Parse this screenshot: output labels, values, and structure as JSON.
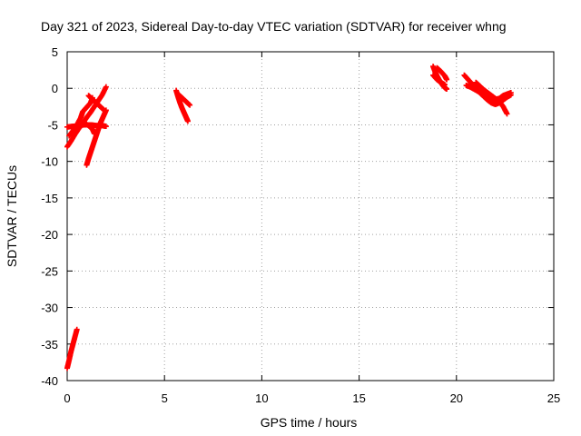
{
  "chart_data": {
    "type": "scatter",
    "title": "Day 321 of 2023, Sidereal Day-to-day VTEC variation (SDTVAR) for receiver whng",
    "xlabel": "GPS time / hours",
    "ylabel": "SDTVAR / TECUs",
    "xlim": [
      0,
      25
    ],
    "ylim": [
      -40,
      5
    ],
    "xticks": [
      0,
      5,
      10,
      15,
      20,
      25
    ],
    "yticks": [
      5,
      0,
      -5,
      -10,
      -15,
      -20,
      -25,
      -30,
      -35,
      -40
    ],
    "grid": true,
    "marker": "plus",
    "color": "#ff0000",
    "series": [
      {
        "segments": [
          [
            [
              0.0,
              -38.3
            ],
            [
              0.1,
              -37.2
            ],
            [
              0.2,
              -36.0
            ],
            [
              0.3,
              -35.0
            ],
            [
              0.4,
              -34.0
            ],
            [
              0.5,
              -33.0
            ]
          ],
          [
            [
              0.0,
              -8.0
            ],
            [
              0.2,
              -7.2
            ],
            [
              0.4,
              -6.3
            ],
            [
              0.6,
              -5.5
            ],
            [
              0.8,
              -4.8
            ],
            [
              1.0,
              -4.0
            ],
            [
              1.2,
              -3.3
            ],
            [
              1.4,
              -2.5
            ],
            [
              1.6,
              -1.7
            ],
            [
              1.8,
              -0.9
            ],
            [
              2.0,
              0.2
            ]
          ],
          [
            [
              0.1,
              -6.5
            ],
            [
              0.3,
              -5.8
            ],
            [
              0.5,
              -5.0
            ],
            [
              0.7,
              -4.0
            ],
            [
              0.8,
              -3.2
            ],
            [
              1.0,
              -2.6
            ],
            [
              1.2,
              -2.0
            ],
            [
              1.3,
              -1.3
            ]
          ],
          [
            [
              0.0,
              -5.3
            ],
            [
              0.3,
              -5.2
            ],
            [
              0.6,
              -5.1
            ],
            [
              0.9,
              -5.0
            ],
            [
              1.2,
              -5.0
            ],
            [
              1.5,
              -5.1
            ],
            [
              1.8,
              -5.1
            ],
            [
              2.0,
              -5.2
            ]
          ],
          [
            [
              0.9,
              -4.8
            ],
            [
              1.1,
              -5.1
            ],
            [
              1.3,
              -5.6
            ],
            [
              1.4,
              -6.2
            ]
          ],
          [
            [
              1.0,
              -10.5
            ],
            [
              1.1,
              -9.6
            ],
            [
              1.2,
              -8.8
            ],
            [
              1.3,
              -8.0
            ],
            [
              1.4,
              -7.2
            ],
            [
              1.5,
              -6.4
            ],
            [
              1.6,
              -5.6
            ],
            [
              1.7,
              -4.8
            ],
            [
              1.8,
              -4.2
            ],
            [
              1.9,
              -3.6
            ],
            [
              2.0,
              -3.0
            ]
          ],
          [
            [
              1.1,
              -1.0
            ],
            [
              1.3,
              -1.5
            ],
            [
              1.5,
              -2.0
            ],
            [
              1.7,
              -2.5
            ],
            [
              1.9,
              -3.0
            ]
          ],
          [
            [
              5.6,
              -0.3
            ],
            [
              5.7,
              -1.2
            ],
            [
              5.8,
              -2.0
            ],
            [
              5.9,
              -2.7
            ],
            [
              6.0,
              -3.3
            ],
            [
              6.1,
              -3.9
            ],
            [
              6.2,
              -4.5
            ]
          ],
          [
            [
              5.7,
              -0.8
            ],
            [
              5.9,
              -1.3
            ],
            [
              6.1,
              -1.8
            ],
            [
              6.3,
              -2.3
            ]
          ],
          [
            [
              18.8,
              3.0
            ],
            [
              18.9,
              2.3
            ],
            [
              19.0,
              1.7
            ],
            [
              19.1,
              1.2
            ],
            [
              19.2,
              0.8
            ],
            [
              19.3,
              0.4
            ],
            [
              19.4,
              0.1
            ],
            [
              19.5,
              -0.1
            ]
          ],
          [
            [
              19.0,
              2.8
            ],
            [
              19.2,
              2.3
            ],
            [
              19.4,
              1.7
            ],
            [
              19.5,
              1.2
            ]
          ],
          [
            [
              18.8,
              1.8
            ],
            [
              19.0,
              1.2
            ],
            [
              19.2,
              0.8
            ],
            [
              19.4,
              0.5
            ]
          ],
          [
            [
              20.4,
              1.8
            ],
            [
              20.6,
              1.2
            ],
            [
              20.8,
              0.6
            ],
            [
              21.0,
              0.0
            ],
            [
              21.2,
              -0.6
            ],
            [
              21.4,
              -1.1
            ],
            [
              21.6,
              -1.6
            ],
            [
              21.8,
              -2.0
            ],
            [
              22.0,
              -2.2
            ],
            [
              22.2,
              -2.0
            ],
            [
              22.4,
              -1.6
            ],
            [
              22.6,
              -1.2
            ],
            [
              22.8,
              -0.9
            ]
          ],
          [
            [
              20.5,
              0.4
            ],
            [
              20.7,
              0.2
            ],
            [
              20.9,
              -0.1
            ],
            [
              21.1,
              -0.4
            ],
            [
              21.3,
              -0.7
            ],
            [
              21.5,
              -1.0
            ],
            [
              21.7,
              -1.3
            ],
            [
              21.9,
              -1.5
            ]
          ],
          [
            [
              21.0,
              0.8
            ],
            [
              21.2,
              0.3
            ],
            [
              21.4,
              -0.2
            ],
            [
              21.6,
              -0.6
            ],
            [
              21.8,
              -1.0
            ],
            [
              22.0,
              -1.4
            ],
            [
              22.2,
              -1.8
            ],
            [
              22.4,
              -2.5
            ],
            [
              22.6,
              -3.5
            ]
          ],
          [
            [
              21.8,
              -1.2
            ],
            [
              22.0,
              -1.5
            ],
            [
              22.2,
              -1.4
            ],
            [
              22.4,
              -1.0
            ],
            [
              22.6,
              -0.8
            ],
            [
              22.8,
              -0.6
            ]
          ]
        ]
      }
    ]
  }
}
